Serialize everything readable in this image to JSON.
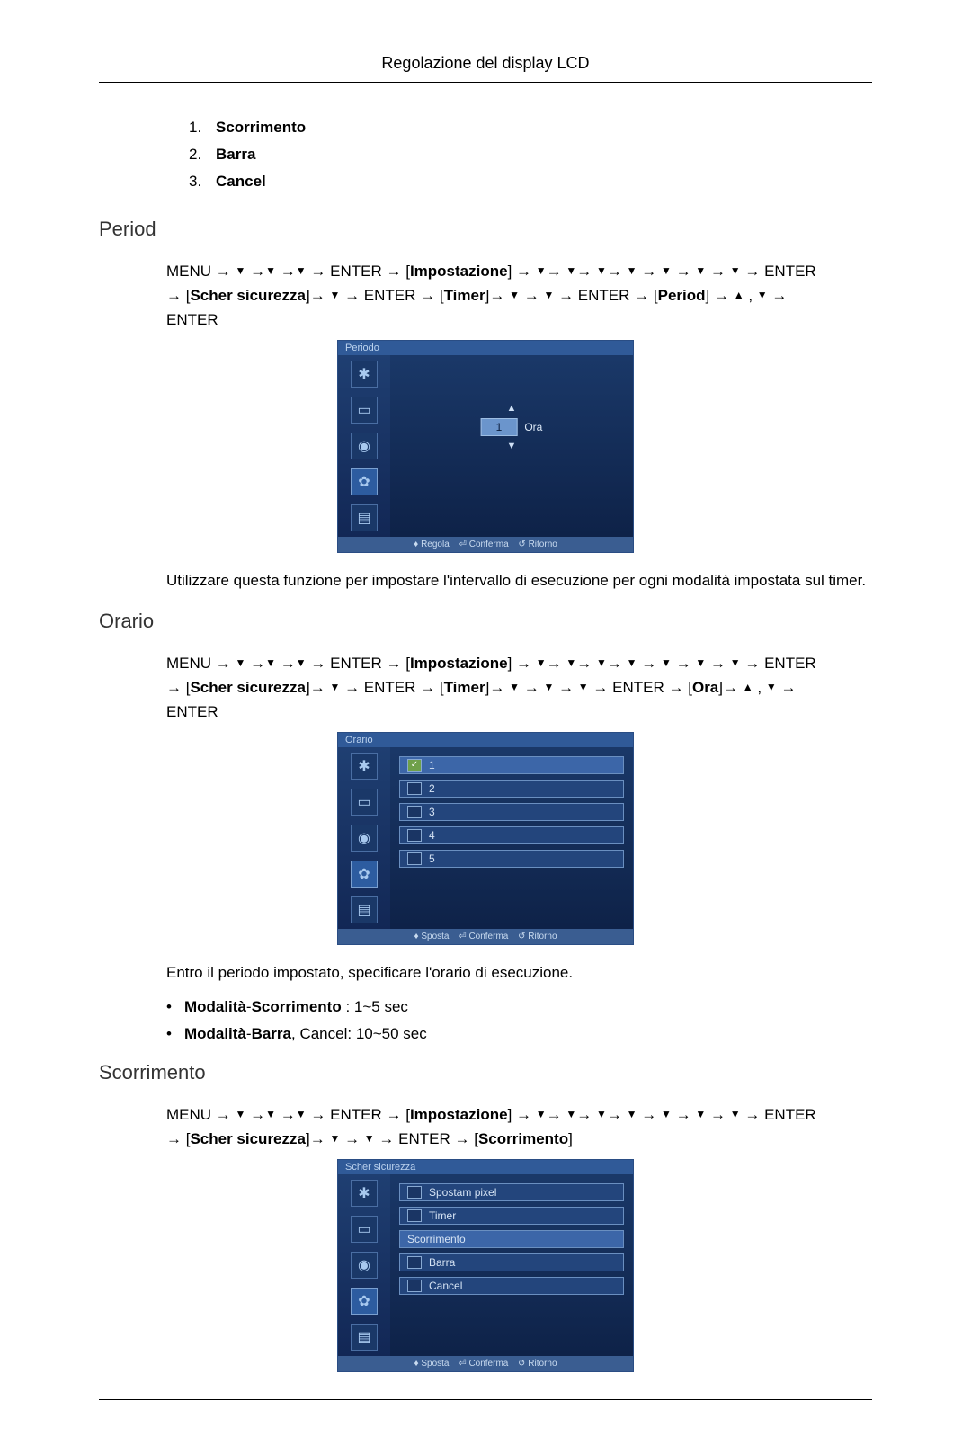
{
  "header": {
    "title": "Regolazione del display LCD"
  },
  "intro_list": [
    {
      "num": "1.",
      "label": "Scorrimento"
    },
    {
      "num": "2.",
      "label": "Barra"
    },
    {
      "num": "3.",
      "label": "Cancel"
    }
  ],
  "symbols": {
    "arrow": "→",
    "down": "▼",
    "up": "▲",
    "comma": ","
  },
  "terms": {
    "menu": "MENU",
    "enter": "ENTER",
    "impostazione": "Impostazione",
    "scher_sicurezza": "Scher sicurezza",
    "timer": "Timer",
    "period_bracket": "Period",
    "ora_bracket": "Ora",
    "scorrimento_bracket": "Scorrimento"
  },
  "sections": {
    "period": {
      "heading": "Period",
      "osd": {
        "title": "Periodo",
        "spinner_value": "1",
        "spinner_unit": "Ora",
        "footer": {
          "a": "Regola",
          "b": "Conferma",
          "c": "Ritorno"
        }
      },
      "desc": "Utilizzare questa funzione per impostare l'intervallo di esecuzione per ogni modalità impostata sul timer."
    },
    "orario": {
      "heading": "Orario",
      "osd": {
        "title": "Orario",
        "rows": [
          "1",
          "2",
          "3",
          "4",
          "5"
        ],
        "footer": {
          "a": "Sposta",
          "b": "Conferma",
          "c": "Ritorno"
        }
      },
      "desc": "Entro il periodo impostato, specificare l'orario di esecuzione.",
      "bullets": [
        {
          "bold": "Modalità",
          "dash": "-",
          "bold2": "Scorrimento",
          "rest": " : 1~5 sec"
        },
        {
          "bold": "Modalità",
          "dash": "-",
          "bold2": "Barra",
          "comma": ", Cancel",
          "rest": ": 10~50 sec"
        }
      ]
    },
    "scorrimento": {
      "heading": "Scorrimento",
      "osd": {
        "title": "Scher sicurezza",
        "rows": [
          "Spostam pixel",
          "Timer",
          "Scorrimento",
          "Barra",
          "Cancel"
        ],
        "footer": {
          "a": "Sposta",
          "b": "Conferma",
          "c": "Ritorno"
        }
      }
    }
  },
  "style": {
    "heading_color": "#333333",
    "osd_bg_top": "#1b3a6b",
    "osd_bg_bottom": "#0d2045",
    "osd_row_bg": "#23457c",
    "osd_row_sel_bg": "#3c66a8"
  }
}
